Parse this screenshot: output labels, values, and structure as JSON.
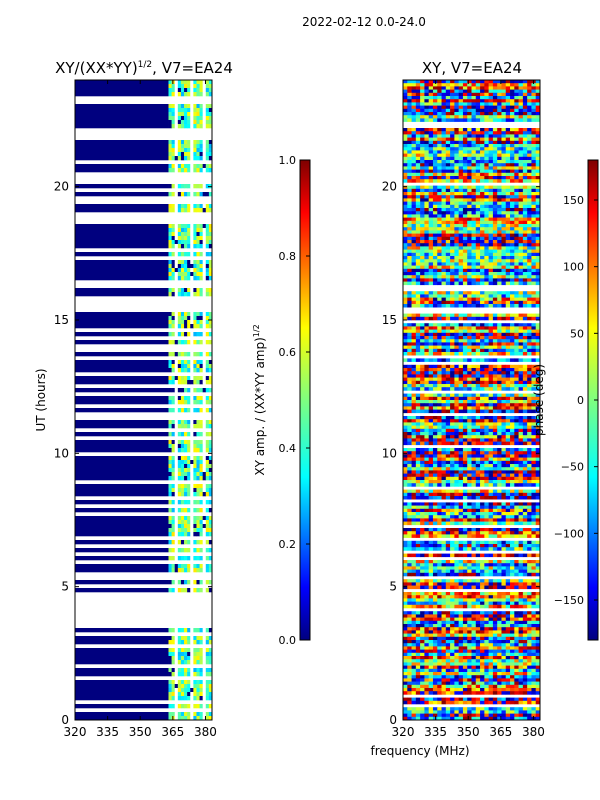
{
  "figure": {
    "suptitle": "2022-02-12 0.0-24.0",
    "xlabel": "frequency (MHz)"
  },
  "colors": {
    "jet": [
      "#00007f",
      "#0000ff",
      "#007fff",
      "#00ffff",
      "#7fff7f",
      "#ffff00",
      "#ff7f00",
      "#ff0000",
      "#7f0000"
    ],
    "frame": "#000000",
    "background": "#ffffff",
    "blank_row": "#ffffff"
  },
  "chart_data": [
    {
      "type": "heatmap",
      "id": "amp",
      "title_main": "XY/(XX*YY)",
      "title_sup": "1/2",
      "title_rest": ", V7=EA24",
      "ylabel": "UT (hours)",
      "xlim": [
        320,
        383
      ],
      "ylim": [
        0,
        24
      ],
      "xticks": [
        320,
        335,
        350,
        365,
        380
      ],
      "yticks": [
        0,
        5,
        10,
        15,
        20
      ],
      "flagged_channel_range_mhz": [
        320,
        363
      ],
      "unflagged_channel_range_mhz": [
        363,
        383
      ],
      "dominant_value_flagged": 0.0,
      "typical_value_unflagged": [
        0.3,
        0.65
      ],
      "blank_time_ranges_hours": [
        [
          3.6,
          4.6
        ],
        [
          15.5,
          15.9
        ]
      ],
      "colorbar": {
        "label_main": "XY amp. / (XX*YY amp)",
        "label_sup": "1/2",
        "range": [
          0.0,
          1.0
        ],
        "ticks": [
          "0.0",
          "0.2",
          "0.4",
          "0.6",
          "0.8",
          "1.0"
        ]
      }
    },
    {
      "type": "heatmap",
      "id": "phase",
      "title": "XY, V7=EA24",
      "xlim": [
        320,
        383
      ],
      "ylim": [
        0,
        24
      ],
      "xticks": [
        320,
        335,
        350,
        365,
        380
      ],
      "yticks": [
        0,
        5,
        10,
        15,
        20
      ],
      "value_range_deg": [
        -180,
        180
      ],
      "colorbar": {
        "label": "phase (deg)",
        "range": [
          -180,
          180
        ],
        "ticks": [
          "150",
          "100",
          "50",
          "0",
          "−50",
          "−100",
          "−150"
        ]
      }
    }
  ]
}
